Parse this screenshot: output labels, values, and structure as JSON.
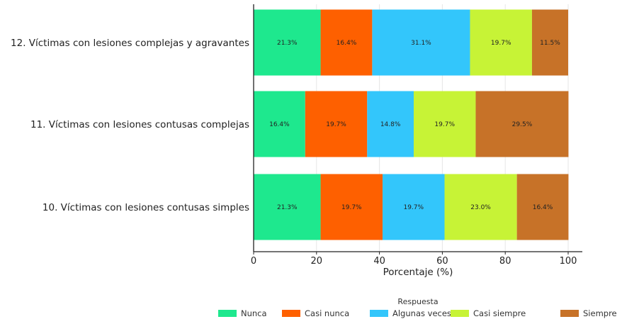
{
  "chart_data": {
    "type": "bar",
    "orientation": "horizontal",
    "stacked": true,
    "categories": [
      "12. Víctimas con lesiones complejas y agravantes",
      "11. Víctimas con lesiones contusas complejas",
      "10. Víctimas con lesiones contusas simples"
    ],
    "series": [
      {
        "name": "Nunca",
        "color": "#1ee88e",
        "values": [
          21.3,
          16.4,
          21.3
        ]
      },
      {
        "name": "Casi nunca",
        "color": "#fe6000",
        "values": [
          16.4,
          19.7,
          19.7
        ]
      },
      {
        "name": "Algunas veces",
        "color": "#33c6fb",
        "values": [
          31.1,
          14.8,
          19.7
        ]
      },
      {
        "name": "Casi siempre",
        "color": "#c7f336",
        "values": [
          19.7,
          19.7,
          23.0
        ]
      },
      {
        "name": "Siempre",
        "color": "#c77228",
        "values": [
          11.5,
          29.5,
          16.4
        ]
      }
    ],
    "data_labels": [
      [
        "21.3%",
        "16.4%",
        "31.1%",
        "19.7%",
        "11.5%"
      ],
      [
        "16.4%",
        "19.7%",
        "14.8%",
        "19.7%",
        "29.5%"
      ],
      [
        "21.3%",
        "19.7%",
        "19.7%",
        "23.0%",
        "16.4%"
      ]
    ],
    "xlabel": "Porcentaje (%)",
    "ylabel": "",
    "xlim": [
      0,
      100
    ],
    "xticks": [
      0,
      20,
      40,
      60,
      80,
      100
    ],
    "grid": "x",
    "legend_title": "Respuesta",
    "legend_position": "bottom"
  }
}
